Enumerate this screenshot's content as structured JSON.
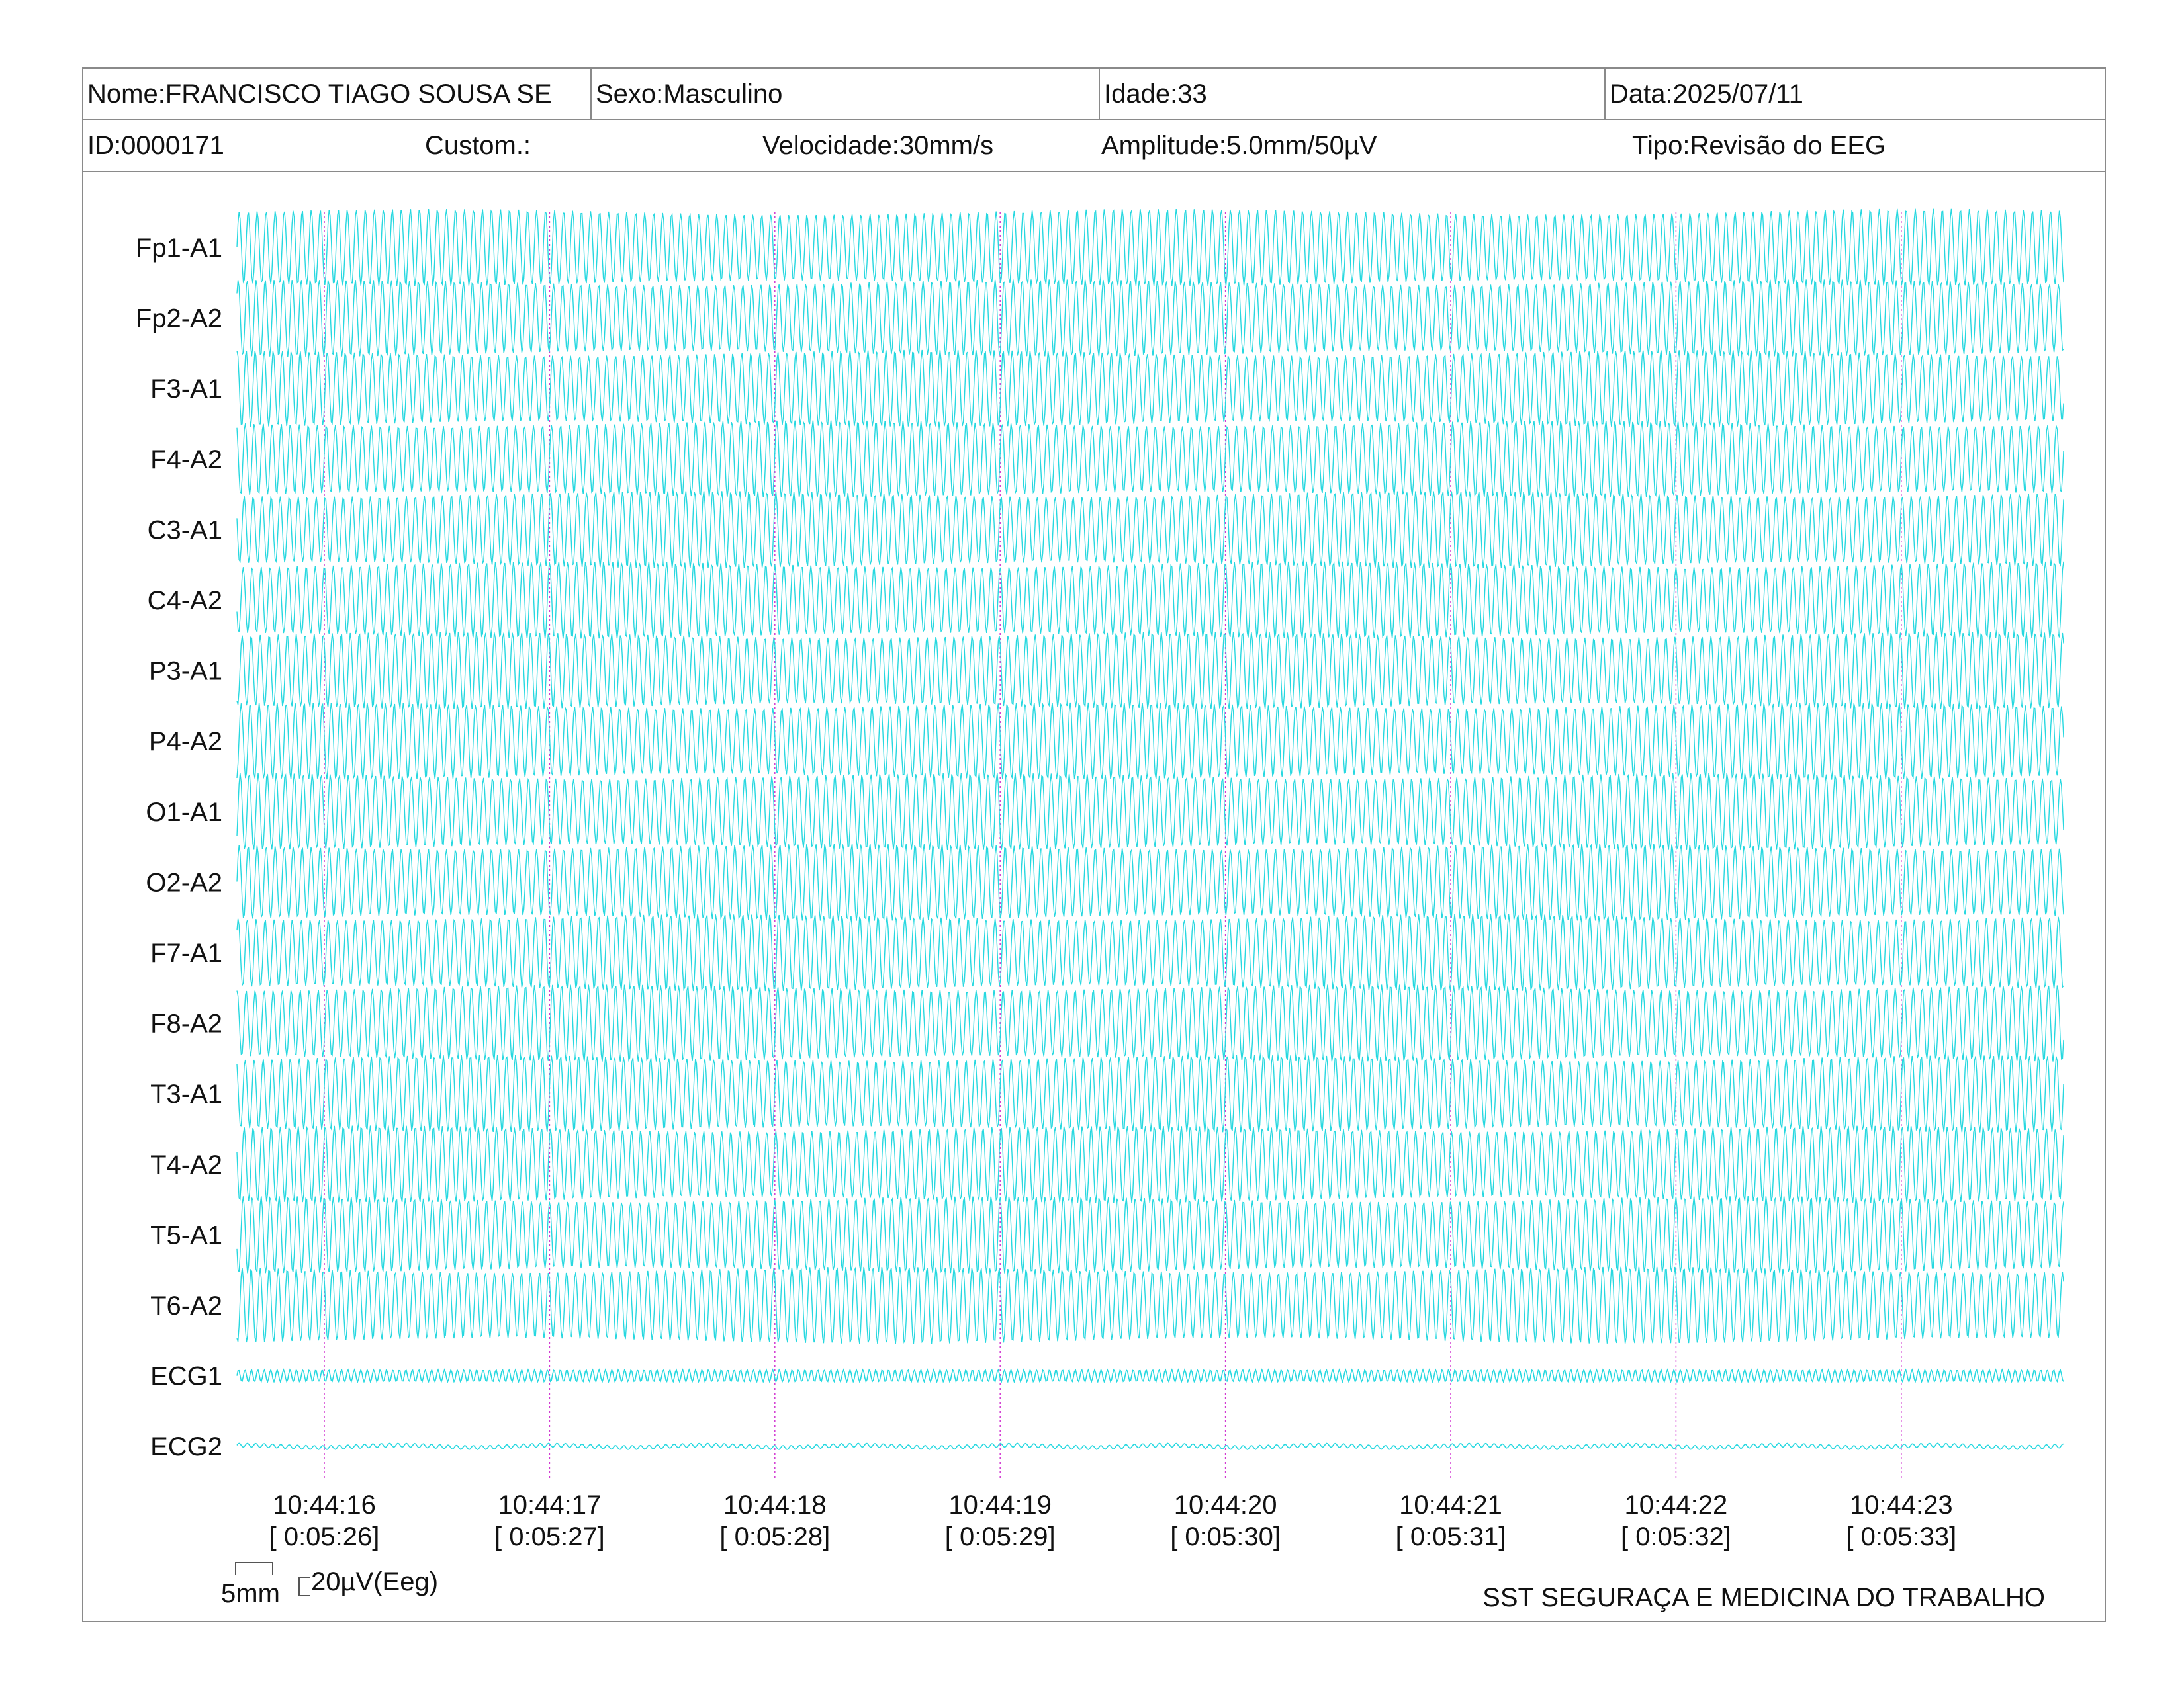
{
  "header": {
    "name": "Nome:FRANCISCO TIAGO SOUSA SE",
    "sex": "Sexo:Masculino",
    "age": "Idade:33",
    "date": "Data:2025/07/11",
    "id": "ID:0000171",
    "custom": "Custom.:",
    "speed": "Velocidade:30mm/s",
    "amplitude": "Amplitude:5.0mm/50µV",
    "type": "Tipo:Revisão do EEG"
  },
  "scale": {
    "time_label": "5mm",
    "amp_label": "20µV(Eeg)"
  },
  "footer": {
    "org": "SST SEGURAÇA E MEDICINA DO TRABALHO"
  },
  "colors": {
    "trace": "#27d8e0",
    "marker": "#d23ad2",
    "border": "#8a8a8a"
  },
  "chart_data": {
    "type": "line",
    "channels": [
      "Fp1-A1",
      "Fp2-A2",
      "F3-A1",
      "F4-A2",
      "C3-A1",
      "C4-A2",
      "P3-A1",
      "P4-A2",
      "O1-A1",
      "O2-A2",
      "F7-A1",
      "F8-A2",
      "T3-A1",
      "T4-A2",
      "T5-A1",
      "T6-A2",
      "ECG1",
      "ECG2"
    ],
    "time_marks": [
      {
        "clock": "10:44:16",
        "elapsed": "[ 0:05:26]"
      },
      {
        "clock": "10:44:17",
        "elapsed": "[ 0:05:27]"
      },
      {
        "clock": "10:44:18",
        "elapsed": "[ 0:05:28]"
      },
      {
        "clock": "10:44:19",
        "elapsed": "[ 0:05:29]"
      },
      {
        "clock": "10:44:20",
        "elapsed": "[ 0:05:30]"
      },
      {
        "clock": "10:44:21",
        "elapsed": "[ 0:05:31]"
      },
      {
        "clock": "10:44:22",
        "elapsed": "[ 0:05:32]"
      },
      {
        "clock": "10:44:23",
        "elapsed": "[ 0:05:33]"
      }
    ],
    "speed_mm_per_s": 30,
    "eeg_cycles_per_second": 25,
    "ecg_cycles_per_second": 35
  }
}
